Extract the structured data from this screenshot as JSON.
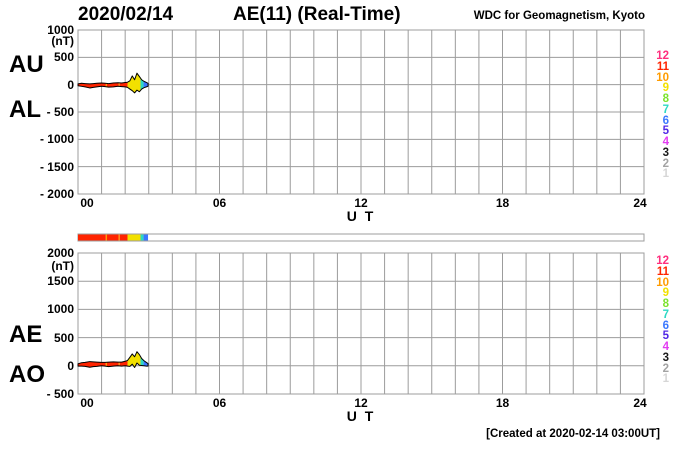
{
  "header": {
    "date": "2020/02/14",
    "title": "AE(11) (Real-Time)",
    "credit": "WDC for Geomagnetism, Kyoto"
  },
  "footer": {
    "created": "[Created at 2020-02-14 03:00UT]"
  },
  "colors": {
    "background": "#ffffff",
    "grid": "#9c9c9c",
    "trace_outline": "#000000",
    "bar_border": "#9c9c9c"
  },
  "legend": {
    "hours": [
      {
        "n": "12",
        "color": "#ff2e7e"
      },
      {
        "n": "11",
        "color": "#ff2400"
      },
      {
        "n": "10",
        "color": "#ff9c00"
      },
      {
        "n": "9",
        "color": "#f2e000"
      },
      {
        "n": "8",
        "color": "#7ce22e"
      },
      {
        "n": "7",
        "color": "#2cd8c4"
      },
      {
        "n": "6",
        "color": "#3a77ff"
      },
      {
        "n": "5",
        "color": "#5128e6"
      },
      {
        "n": "4",
        "color": "#e23cf2"
      },
      {
        "n": "3",
        "color": "#1a1a1a"
      },
      {
        "n": "2",
        "color": "#a3a3a3"
      },
      {
        "n": "1",
        "color": "#d6d6d6"
      }
    ]
  },
  "availability_bar": {
    "full_range_hours": [
      0,
      24
    ],
    "segments": [
      {
        "start_hour": 0.0,
        "end_hour": 1.18,
        "stations": 11
      },
      {
        "start_hour": 1.18,
        "end_hour": 1.23,
        "stations": 10
      },
      {
        "start_hour": 1.23,
        "end_hour": 1.72,
        "stations": 11
      },
      {
        "start_hour": 1.72,
        "end_hour": 1.77,
        "stations": 10
      },
      {
        "start_hour": 1.77,
        "end_hour": 2.1,
        "stations": 11
      },
      {
        "start_hour": 2.1,
        "end_hour": 2.65,
        "stations": 9
      },
      {
        "start_hour": 2.65,
        "end_hour": 2.78,
        "stations": 7
      },
      {
        "start_hour": 2.78,
        "end_hour": 2.97,
        "stations": 6
      }
    ]
  },
  "chart_data": [
    {
      "type": "area",
      "panel": "AU-AL",
      "left_labels": [
        "AU",
        "AL"
      ],
      "unit": "(nT)",
      "ylim": [
        -2000,
        1000
      ],
      "yticks": [
        1000,
        500,
        0,
        -500,
        -1000,
        -1500,
        -2000
      ],
      "xlim": [
        0,
        24
      ],
      "xticks": [
        "00",
        "06",
        "12",
        "18",
        "24"
      ],
      "xlabel": "U T",
      "grid": true,
      "x_hours": [
        0,
        0.15,
        0.3,
        0.5,
        0.65,
        0.8,
        1.0,
        1.15,
        1.3,
        1.5,
        1.7,
        1.85,
        2.0,
        2.1,
        2.2,
        2.3,
        2.4,
        2.5,
        2.6,
        2.7,
        2.8,
        2.9,
        2.97
      ],
      "series": [
        {
          "name": "AU",
          "values": [
            15,
            25,
            20,
            15,
            20,
            25,
            30,
            25,
            20,
            30,
            35,
            30,
            40,
            45,
            70,
            160,
            90,
            210,
            150,
            90,
            60,
            40,
            25
          ]
        },
        {
          "name": "AL",
          "values": [
            -20,
            -30,
            -40,
            -60,
            -50,
            -40,
            -30,
            -35,
            -45,
            -40,
            -30,
            -35,
            -40,
            -50,
            -80,
            -110,
            -150,
            -100,
            -130,
            -80,
            -55,
            -40,
            -30
          ]
        }
      ]
    },
    {
      "type": "area",
      "panel": "AE-AO",
      "left_labels": [
        "AE",
        "AO"
      ],
      "unit": "(nT)",
      "ylim": [
        -500,
        2000
      ],
      "yticks": [
        2000,
        1500,
        1000,
        500,
        0,
        -500
      ],
      "xlim": [
        0,
        24
      ],
      "xticks": [
        "00",
        "06",
        "12",
        "18",
        "24"
      ],
      "xlabel": "U T",
      "grid": true,
      "x_hours": [
        0,
        0.15,
        0.3,
        0.5,
        0.65,
        0.8,
        1.0,
        1.15,
        1.3,
        1.5,
        1.7,
        1.85,
        2.0,
        2.1,
        2.2,
        2.3,
        2.4,
        2.5,
        2.6,
        2.7,
        2.8,
        2.9,
        2.97
      ],
      "series": [
        {
          "name": "AE",
          "values": [
            35,
            55,
            60,
            75,
            70,
            65,
            60,
            60,
            65,
            70,
            65,
            65,
            80,
            95,
            150,
            210,
            160,
            250,
            200,
            130,
            90,
            60,
            40
          ]
        },
        {
          "name": "AO",
          "values": [
            -5,
            -5,
            -10,
            -25,
            -15,
            -10,
            0,
            -5,
            -15,
            -5,
            0,
            -5,
            0,
            -5,
            -10,
            30,
            -30,
            50,
            10,
            5,
            0,
            -5,
            -5
          ]
        }
      ]
    }
  ]
}
